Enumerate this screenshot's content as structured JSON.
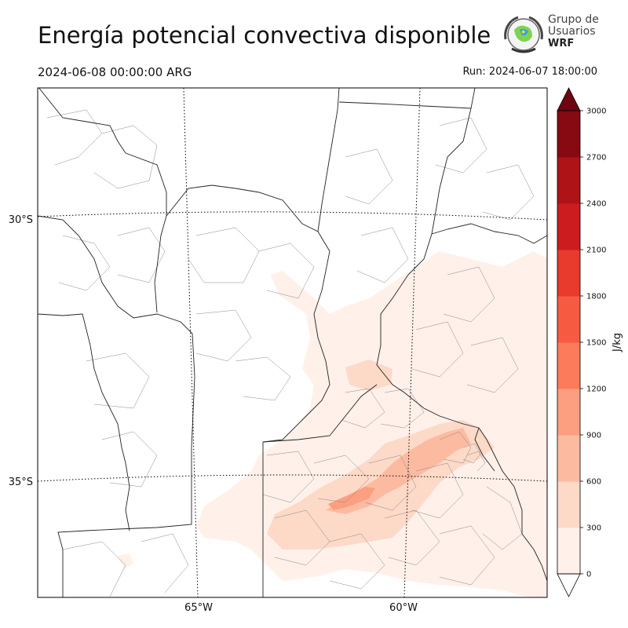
{
  "header": {
    "title": "Energía potencial convectiva disponible",
    "valid_time": "2024-06-08 00:00:00 ARG",
    "run_time": "Run: 2024-06-07 18:00:00"
  },
  "logo": {
    "line1": "Grupo de",
    "line2": "Usuarios",
    "line3": "WRF"
  },
  "map": {
    "lat_labels": [
      "30°S",
      "35°S"
    ],
    "lon_labels": [
      "65°W",
      "60°W"
    ]
  },
  "colorbar": {
    "unit": "J/kg",
    "ticks": [
      "0",
      "300",
      "600",
      "900",
      "1200",
      "1500",
      "1800",
      "2100",
      "2400",
      "2700",
      "3000"
    ],
    "colors": [
      "#fff0ea",
      "#fdd9c8",
      "#fcbba1",
      "#fc9e80",
      "#fb7b5b",
      "#f65b41",
      "#e83a2d",
      "#cd1c1f",
      "#ae1317",
      "#870a12"
    ],
    "over_color": "#6e0510",
    "under_color": "#ffffff"
  },
  "colors": {
    "low_cape": "#fff0ea",
    "mid_cape": "#fdd9c8",
    "high_cape": "#fcbba1",
    "peak_cape": "#fc9e80"
  }
}
